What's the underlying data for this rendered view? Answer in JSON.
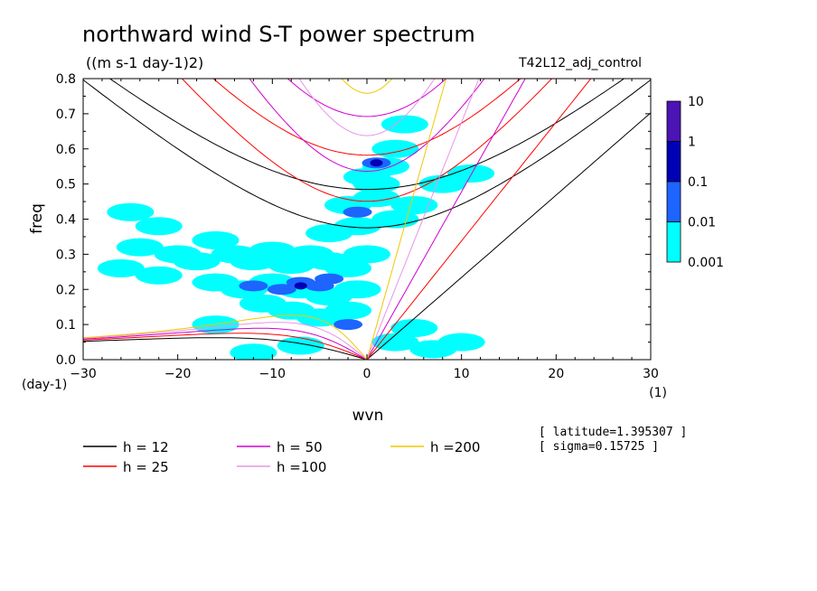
{
  "chart_data": {
    "type": "heatmap",
    "title": "northward wind S-T power spectrum",
    "subtitle": "((m s-1 day-1)2)",
    "experiment": "T42L12_adj_control",
    "xlabel": "wvn",
    "ylabel": "freq",
    "x_unit": "(1)",
    "y_unit": "(day-1)",
    "xlim": [
      -30,
      30
    ],
    "ylim": [
      0,
      0.8
    ],
    "xticks": [
      "-30",
      "-20",
      "-10",
      "0",
      "10",
      "20",
      "30"
    ],
    "yticks": [
      "0.0",
      "0.1",
      "0.2",
      "0.3",
      "0.4",
      "0.5",
      "0.6",
      "0.7",
      "0.8"
    ],
    "info": [
      "[ latitude=1.395307 ]",
      "[ sigma=0.15725 ]"
    ],
    "colorbar": {
      "labels": [
        "10",
        "1",
        "0.1",
        "0.01",
        "0.001"
      ],
      "levels": [
        0.001,
        0.01,
        0.1,
        1,
        10
      ],
      "colors": [
        "#00ffff",
        "#1e64ff",
        "#0000b4",
        "#4b14b4"
      ]
    },
    "dispersion_curves": [
      {
        "label": "h = 12",
        "h": 12,
        "color": "#000000"
      },
      {
        "label": "h = 25",
        "h": 25,
        "color": "#ff0000"
      },
      {
        "label": "h = 50",
        "h": 50,
        "color": "#d200d2"
      },
      {
        "label": "h =100",
        "h": 100,
        "color": "#e696e6"
      },
      {
        "label": "h =200",
        "h": 200,
        "color": "#f0c800"
      }
    ],
    "power_regions": [
      {
        "k": -25,
        "f": 0.42,
        "level": 1
      },
      {
        "k": -22,
        "f": 0.38,
        "level": 1
      },
      {
        "k": -24,
        "f": 0.32,
        "level": 1
      },
      {
        "k": -20,
        "f": 0.3,
        "level": 1
      },
      {
        "k": -26,
        "f": 0.26,
        "level": 1
      },
      {
        "k": -22,
        "f": 0.24,
        "level": 1
      },
      {
        "k": -18,
        "f": 0.28,
        "level": 1
      },
      {
        "k": -16,
        "f": 0.34,
        "level": 1
      },
      {
        "k": -14,
        "f": 0.3,
        "level": 1
      },
      {
        "k": -12,
        "f": 0.28,
        "level": 1
      },
      {
        "k": -10,
        "f": 0.31,
        "level": 1
      },
      {
        "k": -8,
        "f": 0.27,
        "level": 1
      },
      {
        "k": -6,
        "f": 0.3,
        "level": 1
      },
      {
        "k": -4,
        "f": 0.28,
        "level": 1
      },
      {
        "k": -2,
        "f": 0.26,
        "level": 1
      },
      {
        "k": 0,
        "f": 0.3,
        "level": 1
      },
      {
        "k": -16,
        "f": 0.22,
        "level": 1
      },
      {
        "k": -13,
        "f": 0.2,
        "level": 1
      },
      {
        "k": -10,
        "f": 0.22,
        "level": 1
      },
      {
        "k": -7,
        "f": 0.2,
        "level": 1
      },
      {
        "k": -4,
        "f": 0.18,
        "level": 1
      },
      {
        "k": -1,
        "f": 0.2,
        "level": 1
      },
      {
        "k": -11,
        "f": 0.16,
        "level": 1
      },
      {
        "k": -8,
        "f": 0.14,
        "level": 1
      },
      {
        "k": -5,
        "f": 0.12,
        "level": 1
      },
      {
        "k": -2,
        "f": 0.14,
        "level": 1
      },
      {
        "k": -4,
        "f": 0.36,
        "level": 1
      },
      {
        "k": -1,
        "f": 0.38,
        "level": 1
      },
      {
        "k": -2,
        "f": 0.44,
        "level": 1
      },
      {
        "k": 1,
        "f": 0.46,
        "level": 1
      },
      {
        "k": 0,
        "f": 0.52,
        "level": 1
      },
      {
        "k": 2,
        "f": 0.55,
        "level": 1
      },
      {
        "k": 3,
        "f": 0.6,
        "level": 1
      },
      {
        "k": 4,
        "f": 0.67,
        "level": 1
      },
      {
        "k": 1,
        "f": 0.5,
        "level": 1
      },
      {
        "k": 5,
        "f": 0.44,
        "level": 1
      },
      {
        "k": 8,
        "f": 0.5,
        "level": 1
      },
      {
        "k": 11,
        "f": 0.53,
        "level": 1
      },
      {
        "k": 3,
        "f": 0.4,
        "level": 1
      },
      {
        "k": 3,
        "f": 0.05,
        "level": 1
      },
      {
        "k": 7,
        "f": 0.03,
        "level": 1
      },
      {
        "k": 10,
        "f": 0.05,
        "level": 1
      },
      {
        "k": 5,
        "f": 0.09,
        "level": 1
      },
      {
        "k": -7,
        "f": 0.04,
        "level": 1
      },
      {
        "k": -12,
        "f": 0.02,
        "level": 1
      },
      {
        "k": -16,
        "f": 0.1,
        "level": 1
      },
      {
        "k": -7,
        "f": 0.22,
        "level": 2
      },
      {
        "k": -5,
        "f": 0.21,
        "level": 2
      },
      {
        "k": -9,
        "f": 0.2,
        "level": 2
      },
      {
        "k": -12,
        "f": 0.21,
        "level": 2
      },
      {
        "k": -4,
        "f": 0.23,
        "level": 2
      },
      {
        "k": -2,
        "f": 0.1,
        "level": 2
      },
      {
        "k": 1,
        "f": 0.56,
        "level": 2
      },
      {
        "k": -1,
        "f": 0.42,
        "level": 2
      },
      {
        "k": -7,
        "f": 0.21,
        "level": 3
      },
      {
        "k": 1,
        "f": 0.56,
        "level": 3
      }
    ]
  }
}
